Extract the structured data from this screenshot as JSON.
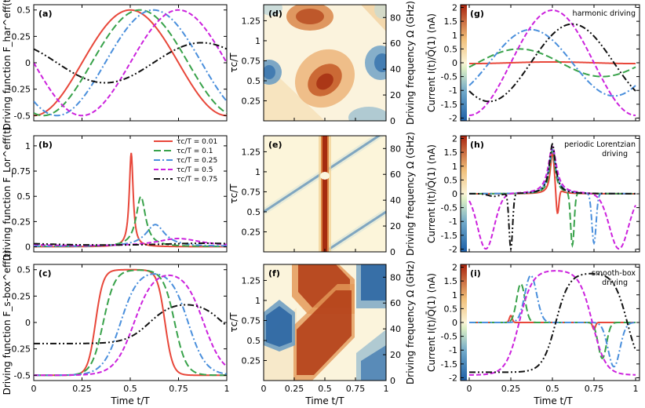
{
  "colors": {
    "s1": "#e8473a",
    "s2": "#38a24a",
    "s3": "#4a8fdc",
    "s4": "#cc22dd",
    "s5": "#111111"
  },
  "legend": [
    "τc/T = 0.01",
    "τc/T = 0.1",
    "τc/T = 0.25",
    "τc/T = 0.5",
    "τc/T = 0.75"
  ],
  "labels": {
    "time_x": "Time t/T",
    "tau_y": "τc/T",
    "freq_y": "Driving frequency Ω (GHz)",
    "drive_har": "Driving function F_har^eff(t)",
    "drive_lor": "Driving function F_Lor^eff(t)",
    "drive_box": "Driving function F_s-box^eff(t)",
    "current": "Current I(t)/Q̄(1) (nA)"
  },
  "panels": {
    "a": "(a)",
    "b": "(b)",
    "c": "(c)",
    "d": "(d)",
    "e": "(e)",
    "f": "(f)",
    "g": "(g)",
    "h": "(h)",
    "i": "(i)"
  },
  "annotations": {
    "g": "harmonic driving",
    "h1": "periodic Lorentzian",
    "h2": "driving",
    "i1": "smooth-box",
    "i2": "driving"
  },
  "chart_data": [
    {
      "id": "a",
      "type": "line",
      "xlabel": "",
      "ylabel": "Driving function F_har^eff(t)",
      "xlim": [
        0,
        1
      ],
      "ylim": [
        -0.55,
        0.55
      ],
      "yticks": [
        -0.5,
        -0.25,
        0,
        0.25,
        0.5
      ],
      "series_note": "harmonic driving, shifted/scaled per τc/T",
      "series": [
        {
          "name": "τc/T = 0.01",
          "peak_t": 0.5,
          "amp": 0.5
        },
        {
          "name": "τc/T = 0.1",
          "peak_t": 0.55,
          "amp": 0.5
        },
        {
          "name": "τc/T = 0.25",
          "peak_t": 0.62,
          "amp": 0.5
        },
        {
          "name": "τc/T = 0.5",
          "peak_t": 0.75,
          "amp": 0.5
        },
        {
          "name": "τc/T = 0.75",
          "peak_t": 0.87,
          "amp": 0.19
        }
      ]
    },
    {
      "id": "b",
      "type": "line",
      "xlabel": "",
      "ylabel": "Driving function F_Lor^eff(t)",
      "xlim": [
        0,
        1
      ],
      "ylim": [
        -0.05,
        1.1
      ],
      "yticks": [
        0,
        0.25,
        0.5,
        0.75,
        1
      ],
      "series": [
        {
          "name": "τc/T = 0.01",
          "peak_t": 0.505,
          "peak": 0.93
        },
        {
          "name": "τc/T = 0.1",
          "peak_t": 0.555,
          "peak": 0.52
        },
        {
          "name": "τc/T = 0.25",
          "peak_t": 0.63,
          "peak": 0.24
        },
        {
          "name": "τc/T = 0.5",
          "peak_t": 0.75,
          "peak": 0.09
        },
        {
          "name": "τc/T = 0.75",
          "peak_t": 0.88,
          "peak": 0.035
        }
      ]
    },
    {
      "id": "c",
      "type": "line",
      "xlabel": "Time t/T",
      "ylabel": "Driving function F_s-box^eff(t)",
      "xlim": [
        0,
        1
      ],
      "ylim": [
        -0.55,
        0.55
      ],
      "xticks": [
        0,
        0.25,
        0.5,
        0.75,
        1
      ],
      "yticks": [
        -0.5,
        -0.25,
        0,
        0.25,
        0.5
      ],
      "series": [
        {
          "name": "τc/T = 0.01",
          "plateau": [
            0.32,
            0.68
          ],
          "amp": 0.5
        },
        {
          "name": "τc/T = 0.1",
          "plateau": [
            0.36,
            0.73
          ],
          "amp": 0.5
        },
        {
          "name": "τc/T = 0.25",
          "plateau": [
            0.45,
            0.8
          ],
          "amp": 0.5
        },
        {
          "name": "τc/T = 0.5",
          "plateau": [
            0.52,
            0.88
          ],
          "amp": 0.5
        },
        {
          "name": "τc/T = 0.75",
          "plateau": [
            0.6,
            0.98
          ],
          "amp": 0.2
        }
      ]
    },
    {
      "id": "d",
      "type": "heatmap",
      "xlabel": "",
      "ylabel": "τc/T",
      "y2label": "Driving frequency Ω (GHz)",
      "xlim": [
        0,
        1
      ],
      "ylim": [
        0,
        1.45
      ],
      "yticks": [
        0.25,
        0.5,
        0.75,
        1,
        1.25
      ],
      "y2ticks": [
        0,
        20,
        40,
        60,
        80
      ]
    },
    {
      "id": "e",
      "type": "heatmap",
      "xlabel": "",
      "ylabel": "τc/T",
      "y2label": "Driving frequency Ω (GHz)",
      "xlim": [
        0,
        1
      ],
      "ylim": [
        0,
        1.45
      ],
      "yticks": [
        0.25,
        0.5,
        0.75,
        1,
        1.25
      ],
      "y2ticks": [
        0,
        20,
        40,
        60,
        80
      ]
    },
    {
      "id": "f",
      "type": "heatmap",
      "xlabel": "Time t/T",
      "ylabel": "τc/T",
      "y2label": "Driving frequency Ω (GHz)",
      "xlim": [
        0,
        1
      ],
      "ylim": [
        0,
        1.45
      ],
      "xticks": [
        0,
        0.25,
        0.5,
        0.75,
        1
      ],
      "yticks": [
        0.25,
        0.5,
        0.75,
        1,
        1.25
      ],
      "y2ticks": [
        0,
        20,
        40,
        60,
        80
      ]
    },
    {
      "id": "g",
      "type": "line",
      "xlabel": "",
      "ylabel": "Current I(t)/Q̄(1) (nA)",
      "xlim": [
        0,
        1
      ],
      "ylim": [
        -2.1,
        2.1
      ],
      "yticks": [
        -2,
        -1.5,
        -1,
        -0.5,
        0,
        0.5,
        1,
        1.5,
        2
      ],
      "colorbar": [
        -2,
        2
      ],
      "series": [
        {
          "name": "τc/T = 0.01",
          "amp": 0.03
        },
        {
          "name": "τc/T = 0.1",
          "amp": 0.5,
          "peak_t": 0.3
        },
        {
          "name": "τc/T = 0.25",
          "amp": 1.2,
          "peak_t": 0.37
        },
        {
          "name": "τc/T = 0.5",
          "amp": 1.9,
          "peak_t": 0.5
        },
        {
          "name": "τc/T = 0.75",
          "amp": 1.4,
          "peak_t": 0.62
        }
      ]
    },
    {
      "id": "h",
      "type": "line",
      "xlabel": "",
      "ylabel": "Current I(t)/Q̄(1) (nA)",
      "xlim": [
        0,
        1
      ],
      "ylim": [
        -2.1,
        2.1
      ],
      "yticks": [
        -2,
        -1.5,
        -1,
        -0.5,
        0,
        0.5,
        1,
        1.5,
        2
      ],
      "colorbar": [
        -2,
        2
      ],
      "series": [
        {
          "name": "τc/T = 0.01",
          "note": "small feature at t≈0.5"
        },
        {
          "name": "τc/T = 0.1",
          "dip_t": 0.62,
          "dip": -1.9
        },
        {
          "name": "τc/T = 0.25",
          "dip_t": 0.75,
          "dip": -1.8
        },
        {
          "name": "τc/T = 0.5",
          "min": -2.0
        },
        {
          "name": "τc/T = 0.75",
          "dip_t": 0.25,
          "dip": -2.0,
          "peak_t": 0.5,
          "peak": 1.8
        }
      ]
    },
    {
      "id": "i",
      "type": "line",
      "xlabel": "Time t/T",
      "ylabel": "Current I(t)/Q̄(1) (nA)",
      "xlim": [
        0,
        1
      ],
      "ylim": [
        -2.1,
        2.1
      ],
      "xticks": [
        0,
        0.25,
        0.5,
        0.75,
        1
      ],
      "yticks": [
        -2,
        -1.5,
        -1,
        -0.5,
        0,
        0.5,
        1,
        1.5,
        2
      ],
      "colorbar": [
        -2,
        2
      ],
      "series": [
        {
          "name": "τc/T = 0.01",
          "spikes_t": [
            0.25,
            0.75
          ],
          "amp": 0.25
        },
        {
          "name": "τc/T = 0.1",
          "peak_t": 0.3,
          "peak": 1.4,
          "dip_t": 0.8,
          "dip": -1.3
        },
        {
          "name": "τc/T = 0.25",
          "peak_t": 0.36,
          "peak": 1.7,
          "dip_t": 0.88,
          "dip": -1.6
        },
        {
          "name": "τc/T = 0.5",
          "plateau": [
            0.35,
            0.72
          ],
          "amp": 1.9
        },
        {
          "name": "τc/T = 0.75",
          "plateau": [
            0.55,
            0.9
          ],
          "amp": 1.8
        }
      ]
    }
  ]
}
